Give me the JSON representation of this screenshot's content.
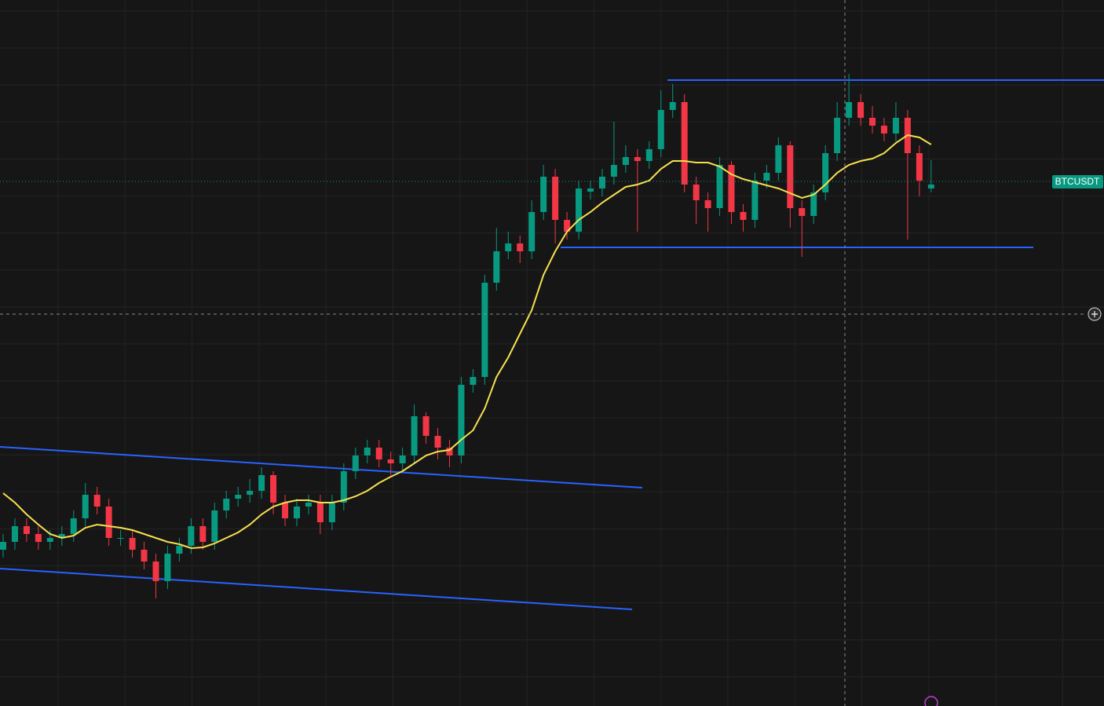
{
  "chart_data": {
    "type": "candlestick",
    "symbol": "BTCUSDT",
    "ylim": [
      0,
      899
    ],
    "up_color": "#089981",
    "down_color": "#f23645",
    "open": [
      199,
      209,
      229,
      219,
      209,
      214,
      219,
      239,
      269,
      254,
      214,
      214,
      199,
      184,
      159,
      194,
      204,
      229,
      209,
      249,
      264,
      269,
      274,
      294,
      259,
      239,
      254,
      259,
      234,
      259,
      299,
      319,
      329,
      314,
      309,
      319,
      369,
      344,
      329,
      319,
      409,
      419,
      539,
      579,
      589,
      579,
      629,
      674,
      619,
      604,
      655,
      659,
      674,
      689,
      699,
      694,
      709,
      759,
      769,
      664,
      644,
      634,
      689,
      629,
      619,
      669,
      679,
      714,
      634,
      624,
      654,
      704,
      749,
      769,
      749,
      739,
      729,
      749,
      704,
      659
    ],
    "high": [
      219,
      239,
      239,
      229,
      224,
      229,
      249,
      284,
      279,
      264,
      224,
      224,
      209,
      194,
      204,
      214,
      239,
      239,
      259,
      274,
      279,
      289,
      304,
      299,
      269,
      264,
      269,
      269,
      269,
      309,
      329,
      339,
      339,
      324,
      329,
      384,
      374,
      354,
      339,
      419,
      429,
      549,
      609,
      604,
      599,
      644,
      689,
      684,
      629,
      669,
      669,
      684,
      744,
      714,
      709,
      719,
      784,
      792,
      779,
      674,
      654,
      699,
      694,
      639,
      679,
      689,
      724,
      719,
      644,
      664,
      714,
      769,
      805,
      779,
      764,
      749,
      769,
      759,
      714,
      695
    ],
    "low": [
      189,
      199,
      209,
      199,
      199,
      204,
      209,
      229,
      244,
      204,
      204,
      189,
      174,
      137,
      149,
      184,
      194,
      199,
      199,
      239,
      254,
      259,
      264,
      244,
      229,
      229,
      244,
      219,
      224,
      249,
      289,
      309,
      304,
      294,
      299,
      309,
      334,
      314,
      304,
      309,
      399,
      409,
      529,
      569,
      564,
      569,
      619,
      589,
      594,
      594,
      645,
      649,
      664,
      679,
      604,
      684,
      699,
      749,
      654,
      614,
      604,
      624,
      614,
      604,
      609,
      659,
      669,
      609,
      572,
      614,
      644,
      694,
      739,
      739,
      729,
      719,
      719,
      594,
      649,
      654
    ],
    "close": [
      209,
      229,
      219,
      209,
      214,
      219,
      239,
      269,
      254,
      214,
      214,
      199,
      184,
      159,
      194,
      204,
      229,
      209,
      249,
      264,
      269,
      274,
      294,
      259,
      239,
      254,
      259,
      234,
      259,
      299,
      319,
      329,
      314,
      309,
      319,
      369,
      344,
      329,
      319,
      409,
      419,
      539,
      579,
      589,
      579,
      629,
      674,
      619,
      604,
      659,
      659,
      674,
      689,
      699,
      694,
      709,
      759,
      769,
      664,
      644,
      634,
      689,
      629,
      619,
      669,
      679,
      714,
      634,
      624,
      654,
      704,
      749,
      769,
      749,
      739,
      729,
      749,
      704,
      669,
      664
    ],
    "ma": {
      "color": "#f5e050",
      "values": [
        271,
        259,
        244,
        231,
        219,
        214,
        217,
        227,
        231,
        229,
        227,
        224,
        219,
        214,
        209,
        206,
        201,
        202,
        207,
        214,
        221,
        231,
        244,
        254,
        259,
        262,
        262,
        259,
        259,
        262,
        267,
        274,
        284,
        292,
        299,
        309,
        319,
        324,
        326,
        339,
        351,
        379,
        419,
        444,
        474,
        504,
        549,
        579,
        604,
        619,
        629,
        641,
        651,
        661,
        664,
        669,
        684,
        694,
        694,
        692,
        692,
        687,
        677,
        671,
        667,
        663,
        659,
        653,
        647,
        651,
        664,
        679,
        689,
        694,
        697,
        704,
        717,
        727,
        724,
        715
      ]
    }
  }
}
